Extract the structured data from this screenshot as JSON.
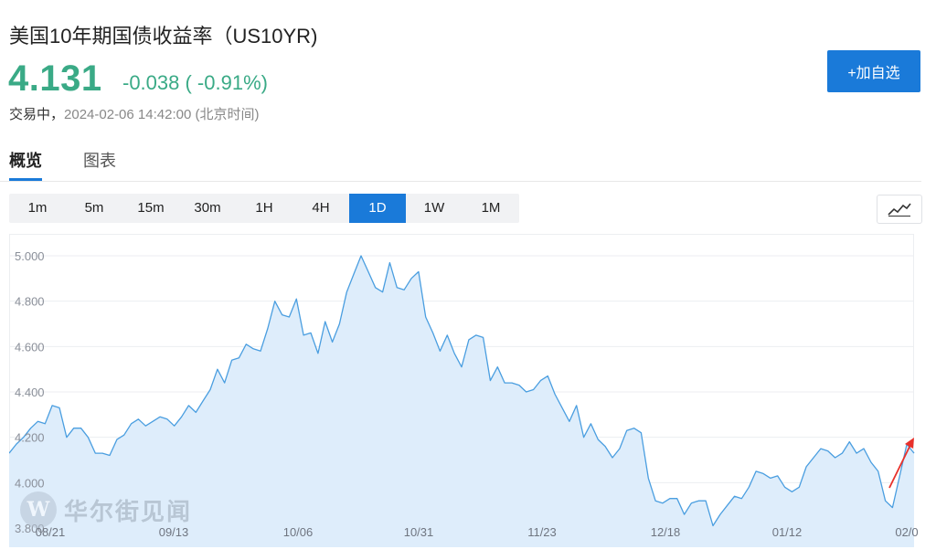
{
  "header": {
    "title": "美国10年期国债收益率（US10YR)",
    "price": "4.131",
    "change": "-0.038 ( -0.91%)",
    "status_prefix": "交易中，",
    "status_time": "2024-02-06 14:42:00 (北京时间)",
    "add_button": "+加自选"
  },
  "tabs": [
    {
      "label": "概览",
      "active": true
    },
    {
      "label": "图表",
      "active": false
    }
  ],
  "periods": [
    {
      "label": "1m"
    },
    {
      "label": "5m"
    },
    {
      "label": "15m"
    },
    {
      "label": "30m"
    },
    {
      "label": "1H"
    },
    {
      "label": "4H"
    },
    {
      "label": "1D",
      "active": true
    },
    {
      "label": "1W"
    },
    {
      "label": "1M"
    }
  ],
  "chart_type_icon": "line-chart-icon",
  "watermark": {
    "logo": "W",
    "text": "华尔街见闻"
  },
  "colors": {
    "accent": "#1a7ad9",
    "positive_green": "#3aaa86",
    "line": "#4a9ee0",
    "fill": "#deedfb",
    "annotation_arrow": "#e8312b"
  },
  "chart_data": {
    "type": "area",
    "title": "",
    "xlabel": "",
    "ylabel": "",
    "ylim": [
      3.8,
      5.0
    ],
    "y_ticks": [
      "5.000",
      "4.800",
      "4.600",
      "4.400",
      "4.200",
      "4.000",
      "3.800"
    ],
    "x_ticks": [
      "08/21",
      "09/13",
      "10/06",
      "10/31",
      "11/23",
      "12/18",
      "01/12",
      "02/0"
    ],
    "values": [
      4.13,
      4.17,
      4.2,
      4.24,
      4.27,
      4.26,
      4.34,
      4.33,
      4.2,
      4.24,
      4.24,
      4.2,
      4.13,
      4.13,
      4.12,
      4.19,
      4.21,
      4.26,
      4.28,
      4.25,
      4.27,
      4.29,
      4.28,
      4.25,
      4.29,
      4.34,
      4.31,
      4.36,
      4.41,
      4.5,
      4.44,
      4.54,
      4.55,
      4.61,
      4.59,
      4.58,
      4.68,
      4.8,
      4.74,
      4.73,
      4.81,
      4.65,
      4.66,
      4.57,
      4.71,
      4.62,
      4.7,
      4.84,
      4.92,
      5.0,
      4.93,
      4.86,
      4.84,
      4.97,
      4.86,
      4.85,
      4.9,
      4.93,
      4.73,
      4.66,
      4.58,
      4.65,
      4.57,
      4.51,
      4.63,
      4.65,
      4.64,
      4.45,
      4.51,
      4.44,
      4.44,
      4.43,
      4.4,
      4.41,
      4.45,
      4.47,
      4.39,
      4.33,
      4.27,
      4.34,
      4.2,
      4.26,
      4.19,
      4.16,
      4.11,
      4.15,
      4.23,
      4.24,
      4.22,
      4.02,
      3.92,
      3.91,
      3.93,
      3.93,
      3.86,
      3.91,
      3.92,
      3.92,
      3.81,
      3.86,
      3.9,
      3.94,
      3.93,
      3.98,
      4.05,
      4.04,
      4.02,
      4.03,
      3.98,
      3.96,
      3.98,
      4.07,
      4.11,
      4.15,
      4.14,
      4.11,
      4.13,
      4.18,
      4.13,
      4.15,
      4.09,
      4.05,
      3.92,
      3.89,
      4.03,
      4.17,
      4.13
    ],
    "annotation": "up-arrow at latest value"
  }
}
